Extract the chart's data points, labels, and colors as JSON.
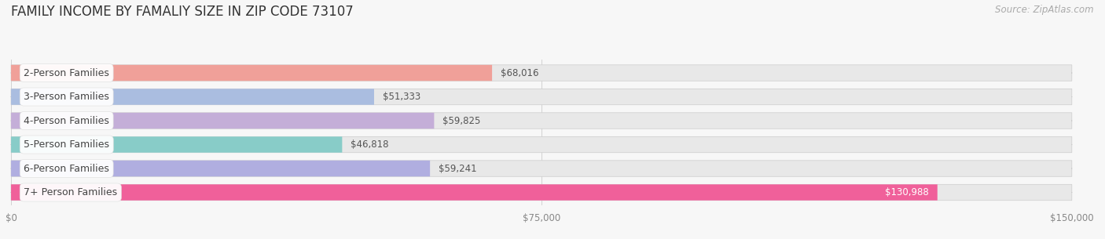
{
  "title": "FAMILY INCOME BY FAMALIY SIZE IN ZIP CODE 73107",
  "source": "Source: ZipAtlas.com",
  "categories": [
    "2-Person Families",
    "3-Person Families",
    "4-Person Families",
    "5-Person Families",
    "6-Person Families",
    "7+ Person Families"
  ],
  "values": [
    68016,
    51333,
    59825,
    46818,
    59241,
    130988
  ],
  "bar_colors": [
    "#f0a099",
    "#aabde0",
    "#c4aed8",
    "#88ccc8",
    "#b0aee0",
    "#f0609a"
  ],
  "bg_color": "#f7f7f7",
  "bar_bg_color": "#e8e8e8",
  "xlim_max": 150000,
  "xtick_labels": [
    "$0",
    "$75,000",
    "$150,000"
  ],
  "xtick_vals": [
    0,
    75000,
    150000
  ],
  "title_fontsize": 12,
  "label_fontsize": 9,
  "value_fontsize": 8.5,
  "source_fontsize": 8.5,
  "value_colors": [
    "#555555",
    "#555555",
    "#555555",
    "#555555",
    "#555555",
    "#ffffff"
  ]
}
